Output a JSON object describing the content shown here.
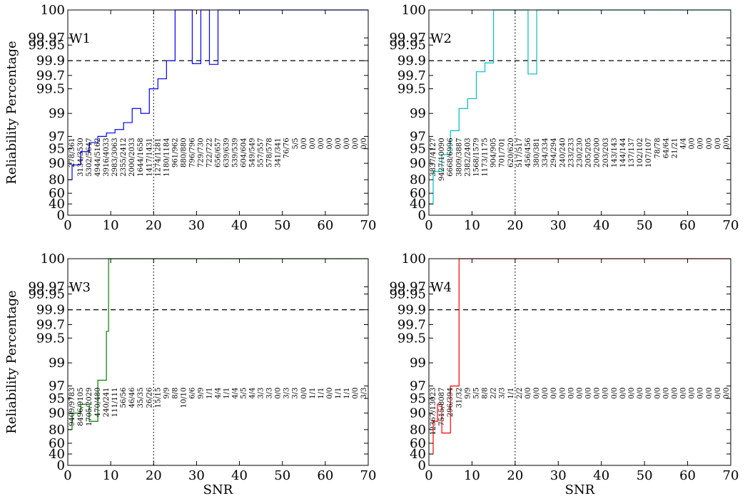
{
  "chart_data": [
    {
      "type": "line",
      "series_name": "W1",
      "color": "#0000ff",
      "xlabel": "",
      "ylabel": "Reliability Percentage",
      "xlim": [
        0,
        70
      ],
      "x_ticks": [
        "0",
        "10",
        "20",
        "30",
        "40",
        "50",
        "60",
        "70"
      ],
      "y_ticks": [
        "0",
        "40",
        "60",
        "80",
        "90",
        "95",
        "97",
        "99",
        "99.5",
        "99.7",
        "99.9",
        "99.95",
        "99.97",
        "100"
      ],
      "threshold": 99.9,
      "vline_x": 20,
      "steps": [
        [
          0,
          80
        ],
        [
          1,
          89
        ],
        [
          3,
          94
        ],
        [
          5,
          96
        ],
        [
          7,
          97
        ],
        [
          9,
          97.3
        ],
        [
          11,
          97.6
        ],
        [
          13,
          98.2
        ],
        [
          15,
          99.1
        ],
        [
          17,
          99
        ],
        [
          19,
          99.5
        ],
        [
          21,
          99.65
        ],
        [
          23,
          99.9
        ],
        [
          25,
          100
        ],
        [
          29,
          99.86
        ],
        [
          31,
          100
        ],
        [
          33,
          99.85
        ],
        [
          35,
          100
        ],
        [
          70,
          100
        ]
      ],
      "counts": [
        "278/361",
        "3134/3530",
        "5302/5647",
        "4944/5162",
        "3916/4033",
        "2983/3063",
        "2355/2412",
        "2000/2033",
        "1644/1658",
        "1417/1431",
        "1274/1281",
        "1180/1184",
        "961/962",
        "880/880",
        "796/796",
        "729/730",
        "722/722",
        "656/657",
        "639/639",
        "539/539",
        "604/604",
        "549/549",
        "557/557",
        "578/578",
        "341/341",
        "76/76",
        "5/5",
        "0/0",
        "0/0",
        "0/0",
        "0/0",
        "0/0",
        "0/0",
        "0/0",
        "0/0"
      ]
    },
    {
      "type": "line",
      "series_name": "W2",
      "color": "#00bfbf",
      "xlabel": "",
      "ylabel": "",
      "xlim": [
        0,
        70
      ],
      "x_ticks": [
        "0",
        "10",
        "20",
        "30",
        "40",
        "50",
        "60",
        "70"
      ],
      "y_ticks": [
        "0",
        "40",
        "60",
        "80",
        "90",
        "95",
        "97",
        "99",
        "99.5",
        "99.7",
        "99.9",
        "99.95",
        "99.97",
        "100"
      ],
      "threshold": 99.9,
      "vline_x": 20,
      "steps": [
        [
          0,
          40
        ],
        [
          1,
          85
        ],
        [
          3,
          93
        ],
        [
          5,
          97.5
        ],
        [
          7,
          99.1
        ],
        [
          9,
          99.3
        ],
        [
          11,
          99.75
        ],
        [
          13,
          99.87
        ],
        [
          15,
          100
        ],
        [
          23,
          99.72
        ],
        [
          25,
          100
        ],
        [
          70,
          100
        ]
      ],
      "counts": [
        "3837/4127",
        "9427/10090",
        "6668/6996",
        "3809/3887",
        "2382/2403",
        "1568/1579",
        "1173/1175",
        "904/905",
        "701/701",
        "620/620",
        "517/517",
        "456/456",
        "380/381",
        "334/334",
        "294/294",
        "240/240",
        "233/233",
        "230/230",
        "205/205",
        "200/200",
        "203/203",
        "143/143",
        "144/144",
        "137/137",
        "102/102",
        "107/107",
        "78/78",
        "64/64",
        "21/21",
        "4/4",
        "0/0",
        "0/0",
        "0/0",
        "0/0",
        "0/0"
      ]
    },
    {
      "type": "line",
      "series_name": "W3",
      "color": "#008000",
      "xlabel": "SNR",
      "ylabel": "Reliability Percentage",
      "xlim": [
        0,
        70
      ],
      "x_ticks": [
        "0",
        "10",
        "20",
        "30",
        "40",
        "50",
        "60",
        "70"
      ],
      "y_ticks": [
        "0",
        "40",
        "60",
        "80",
        "90",
        "95",
        "97",
        "99",
        "99.5",
        "99.7",
        "99.9",
        "99.95",
        "99.97",
        "100"
      ],
      "threshold": 99.9,
      "vline_x": 20,
      "steps": [
        [
          0,
          80
        ],
        [
          1,
          90
        ],
        [
          3,
          93
        ],
        [
          5,
          85
        ],
        [
          7,
          97.5
        ],
        [
          9,
          99.6
        ],
        [
          9.5,
          100
        ],
        [
          70,
          100
        ]
      ],
      "counts": [
        "9409/9783",
        "8496/9105",
        "1705/2029",
        "470/480",
        "240/241",
        "111/111",
        "56/56",
        "46/46",
        "35/35",
        "26/26",
        "15/15",
        "9/9",
        "8/8",
        "10/10",
        "6/6",
        "9/9",
        "1/1",
        "4/4",
        "1/1",
        "4/4",
        "5/5",
        "4/4",
        "3/3",
        "3/3",
        "0/0",
        "3/3",
        "3/3",
        "0/0",
        "1/1",
        "1/1",
        "0/0",
        "1/1",
        "1/1",
        "0/0",
        "3/3"
      ]
    },
    {
      "type": "line",
      "series_name": "W4",
      "color": "#ff0000",
      "xlabel": "SNR",
      "ylabel": "",
      "xlim": [
        0,
        70
      ],
      "x_ticks": [
        "0",
        "10",
        "20",
        "30",
        "40",
        "50",
        "60",
        "70"
      ],
      "y_ticks": [
        "0",
        "40",
        "60",
        "80",
        "90",
        "95",
        "97",
        "99",
        "99.5",
        "99.7",
        "99.9",
        "99.95",
        "99.97",
        "100"
      ],
      "threshold": 99.9,
      "vline_x": 20,
      "steps": [
        [
          0,
          40
        ],
        [
          1,
          85
        ],
        [
          2,
          93
        ],
        [
          3,
          75
        ],
        [
          5,
          97
        ],
        [
          7,
          100
        ],
        [
          70,
          100
        ]
      ],
      "counts": [
        "12367/13023",
        "7515/8087",
        "296/394",
        "31/32",
        "9/9",
        "5/5",
        "8/8",
        "2/2",
        "3/3",
        "1/1",
        "2/2",
        "0/0",
        "0/0",
        "0/0",
        "0/0",
        "0/0",
        "0/0",
        "0/0",
        "0/0",
        "0/0",
        "0/0",
        "0/0",
        "0/0",
        "0/0",
        "0/0",
        "0/0",
        "0/0",
        "0/0",
        "0/0",
        "0/0",
        "0/0",
        "0/0",
        "0/0",
        "0/0",
        "0/0"
      ]
    }
  ]
}
